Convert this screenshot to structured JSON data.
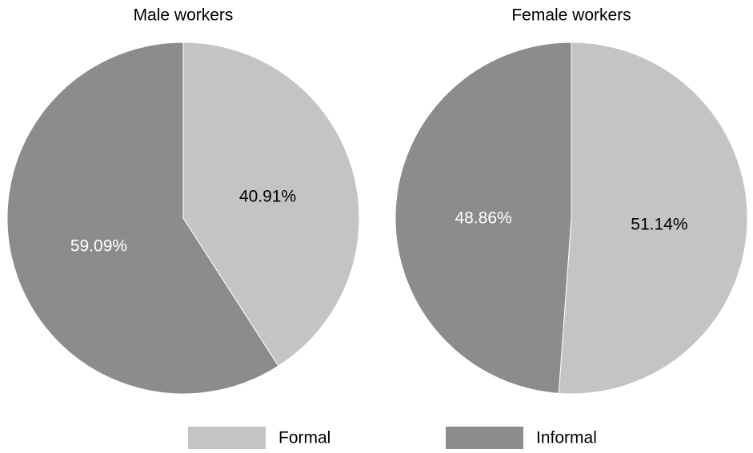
{
  "chart_data": [
    {
      "type": "pie",
      "title": "Male workers",
      "categories": [
        "Formal",
        "Informal"
      ],
      "values": [
        40.91,
        59.09
      ],
      "value_labels": [
        "40.91%",
        "59.09%"
      ],
      "colors": [
        "#c4c4c4",
        "#8c8c8c"
      ]
    },
    {
      "type": "pie",
      "title": "Female workers",
      "categories": [
        "Formal",
        "Informal"
      ],
      "values": [
        51.14,
        48.86
      ],
      "value_labels": [
        "51.14%",
        "48.86%"
      ],
      "colors": [
        "#c4c4c4",
        "#8c8c8c"
      ]
    }
  ]
}
